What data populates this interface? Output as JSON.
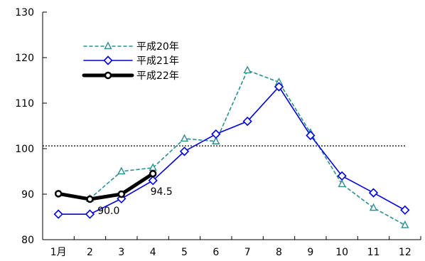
{
  "chart_data": {
    "type": "line",
    "categories": [
      "1月",
      "2",
      "3",
      "4",
      "5",
      "6",
      "7",
      "8",
      "9",
      "10",
      "11",
      "12"
    ],
    "ylim": [
      80,
      130
    ],
    "yticks": [
      80,
      90,
      100,
      110,
      120,
      130
    ],
    "grid": false,
    "legend_position": "top-left",
    "reference_line": {
      "value": 100.6,
      "style": "dotted"
    },
    "series": [
      {
        "name": "平成20年",
        "color": "#2a8f8f",
        "line_style": "dashed",
        "marker": "triangle",
        "values": [
          null,
          89.0,
          95.0,
          95.8,
          102.2,
          101.6,
          117.2,
          114.6,
          103.5,
          92.2,
          87.0,
          83.2
        ]
      },
      {
        "name": "平成21年",
        "color": "#0000dd",
        "line_style": "solid",
        "marker": "diamond",
        "values": [
          85.6,
          85.6,
          89.0,
          93.0,
          99.4,
          103.2,
          106.0,
          113.6,
          102.9,
          94.0,
          90.3,
          86.5
        ]
      },
      {
        "name": "平成22年",
        "color": "#000000",
        "line_style": "bold",
        "marker": "circle",
        "values": [
          90.1,
          88.9,
          90.0,
          94.5,
          null,
          null,
          null,
          null,
          null,
          null,
          null,
          null
        ]
      }
    ],
    "annotations": [
      {
        "text": "94.5",
        "x": "4",
        "y": 94.5
      },
      {
        "text": "90.0",
        "x": "3",
        "y": 90.0
      }
    ]
  }
}
